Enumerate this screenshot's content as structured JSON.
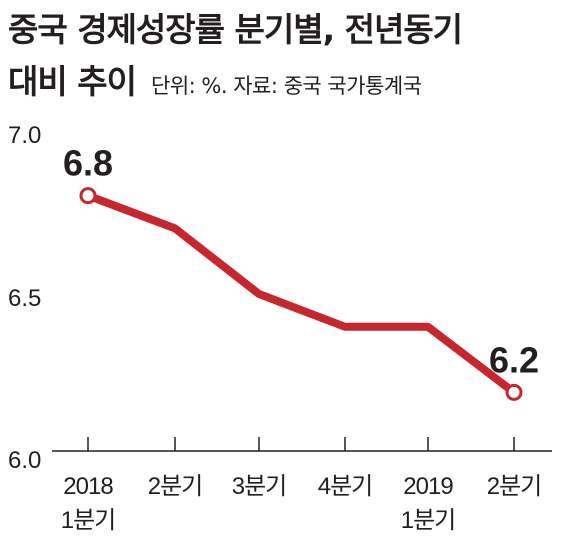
{
  "header": {
    "title_line1": "중국 경제성장률 분기별, 전년동기",
    "title_line2": "대비 추이",
    "source": "단위: %. 자료: 중국 국가통계국"
  },
  "colors": {
    "line": "#c8262f",
    "marker_fill": "#ffffff",
    "axis": "#231f20"
  },
  "chart_data": {
    "type": "line",
    "title": "중국 경제성장률 분기별, 전년동기 대비 추이",
    "unit": "%",
    "source": "중국 국가통계국",
    "categories": [
      "2018\n1분기",
      "2분기",
      "3분기",
      "4분기",
      "2019\n1분기",
      "2분기"
    ],
    "values": [
      6.8,
      6.7,
      6.5,
      6.4,
      6.4,
      6.2
    ],
    "y_ticks": [
      "7.0",
      "6.5",
      "6.0"
    ],
    "ylim": [
      6.0,
      7.0
    ],
    "labeled_points": [
      {
        "index": 0,
        "label": "6.8"
      },
      {
        "index": 5,
        "label": "6.2"
      }
    ],
    "grid": false,
    "legend": "none"
  }
}
